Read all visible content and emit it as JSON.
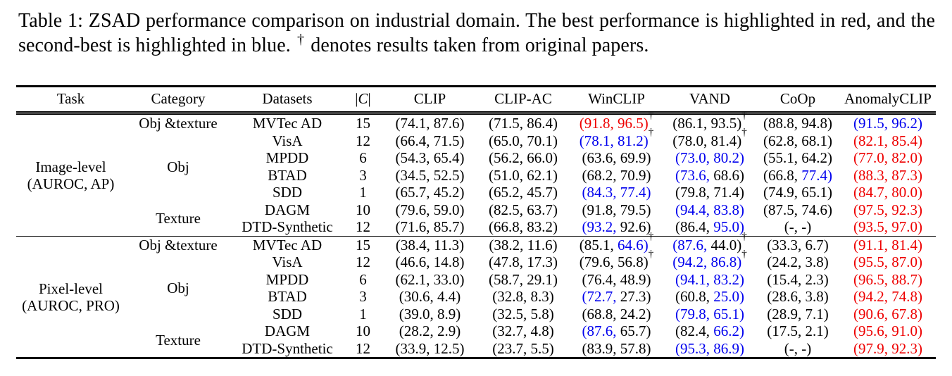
{
  "colors": {
    "best": "#EE0000",
    "second": "#0000EE",
    "text": "#000000"
  },
  "caption": {
    "part1": "Table 1: ZSAD performance comparison on industrial domain. The best performance is highlighted in red, and the second-best is highlighted in blue.",
    "dagger": "†",
    "part2": "denotes results taken from original papers."
  },
  "table": {
    "columns": [
      "Task",
      "Category",
      "Datasets",
      "|C|",
      "CLIP",
      "CLIP-AC",
      "WinCLIP",
      "VAND",
      "CoOp",
      "AnomalyCLIP"
    ],
    "sections": [
      {
        "task": [
          "Image-level",
          "(AUROC, AP)"
        ],
        "groups": [
          {
            "category": "Obj &texture",
            "rows": [
              {
                "dataset": "MVTec AD",
                "count": "15",
                "cells": [
                  [
                    "74.1",
                    "k",
                    "87.6",
                    "k",
                    0
                  ],
                  [
                    "71.5",
                    "k",
                    "86.4",
                    "k",
                    0
                  ],
                  [
                    "91.8",
                    "r",
                    "96.5",
                    "r",
                    1
                  ],
                  [
                    "86.1",
                    "k",
                    "93.5",
                    "k",
                    1
                  ],
                  [
                    "88.8",
                    "k",
                    "94.8",
                    "k",
                    0
                  ],
                  [
                    "91.5",
                    "b",
                    "96.2",
                    "b",
                    0
                  ]
                ]
              }
            ]
          },
          {
            "category": "Obj",
            "rows": [
              {
                "dataset": "VisA",
                "count": "12",
                "cells": [
                  [
                    "66.4",
                    "k",
                    "71.5",
                    "k",
                    0
                  ],
                  [
                    "65.0",
                    "k",
                    "70.1",
                    "k",
                    0
                  ],
                  [
                    "78.1",
                    "b",
                    "81.2",
                    "b",
                    1
                  ],
                  [
                    "78.0",
                    "k",
                    "81.4",
                    "k",
                    1
                  ],
                  [
                    "62.8",
                    "k",
                    "68.1",
                    "k",
                    0
                  ],
                  [
                    "82.1",
                    "r",
                    "85.4",
                    "r",
                    0
                  ]
                ]
              },
              {
                "dataset": "MPDD",
                "count": "6",
                "cells": [
                  [
                    "54.3",
                    "k",
                    "65.4",
                    "k",
                    0
                  ],
                  [
                    "56.2",
                    "k",
                    "66.0",
                    "k",
                    0
                  ],
                  [
                    "63.6",
                    "k",
                    "69.9",
                    "k",
                    0
                  ],
                  [
                    "73.0",
                    "b",
                    "80.2",
                    "b",
                    0
                  ],
                  [
                    "55.1",
                    "k",
                    "64.2",
                    "k",
                    0
                  ],
                  [
                    "77.0",
                    "r",
                    "82.0",
                    "r",
                    0
                  ]
                ]
              },
              {
                "dataset": "BTAD",
                "count": "3",
                "cells": [
                  [
                    "34.5",
                    "k",
                    "52.5",
                    "k",
                    0
                  ],
                  [
                    "51.0",
                    "k",
                    "62.1",
                    "k",
                    0
                  ],
                  [
                    "68.2",
                    "k",
                    "70.9",
                    "k",
                    0
                  ],
                  [
                    "73.6",
                    "b",
                    "68.6",
                    "k",
                    0
                  ],
                  [
                    "66.8",
                    "k",
                    "77.4",
                    "b",
                    0
                  ],
                  [
                    "88.3",
                    "r",
                    "87.3",
                    "r",
                    0
                  ]
                ]
              },
              {
                "dataset": "SDD",
                "count": "1",
                "cells": [
                  [
                    "65.7",
                    "k",
                    "45.2",
                    "k",
                    0
                  ],
                  [
                    "65.2",
                    "k",
                    "45.7",
                    "k",
                    0
                  ],
                  [
                    "84.3",
                    "b",
                    "77.4",
                    "b",
                    0
                  ],
                  [
                    "79.8",
                    "k",
                    "71.4",
                    "k",
                    0
                  ],
                  [
                    "74.9",
                    "k",
                    "65.1",
                    "k",
                    0
                  ],
                  [
                    "84.7",
                    "r",
                    "80.0",
                    "r",
                    0
                  ]
                ]
              }
            ]
          },
          {
            "category": "Texture",
            "rows": [
              {
                "dataset": "DAGM",
                "count": "10",
                "cells": [
                  [
                    "79.6",
                    "k",
                    "59.0",
                    "k",
                    0
                  ],
                  [
                    "82.5",
                    "k",
                    "63.7",
                    "k",
                    0
                  ],
                  [
                    "91.8",
                    "k",
                    "79.5",
                    "k",
                    0
                  ],
                  [
                    "94.4",
                    "b",
                    "83.8",
                    "b",
                    0
                  ],
                  [
                    "87.5",
                    "k",
                    "74.6",
                    "k",
                    0
                  ],
                  [
                    "97.5",
                    "r",
                    "92.3",
                    "r",
                    0
                  ]
                ]
              },
              {
                "dataset": "DTD-Synthetic",
                "count": "12",
                "cells": [
                  [
                    "71.6",
                    "k",
                    "85.7",
                    "k",
                    0
                  ],
                  [
                    "66.8",
                    "k",
                    "83.2",
                    "k",
                    0
                  ],
                  [
                    "93.2",
                    "b",
                    "92.6",
                    "k",
                    0
                  ],
                  [
                    "86.4",
                    "k",
                    "95.0",
                    "b",
                    0
                  ],
                  [
                    "-",
                    "k",
                    "-",
                    "k",
                    0
                  ],
                  [
                    "93.5",
                    "r",
                    "97.0",
                    "r",
                    0
                  ]
                ]
              }
            ]
          }
        ]
      },
      {
        "task": [
          "Pixel-level",
          "(AUROC, PRO)"
        ],
        "groups": [
          {
            "category": "Obj &texture",
            "rows": [
              {
                "dataset": "MVTec AD",
                "count": "15",
                "cells": [
                  [
                    "38.4",
                    "k",
                    "11.3",
                    "k",
                    0
                  ],
                  [
                    "38.2",
                    "k",
                    "11.6",
                    "k",
                    0
                  ],
                  [
                    "85.1",
                    "k",
                    "64.6",
                    "b",
                    1
                  ],
                  [
                    "87.6",
                    "b",
                    "44.0",
                    "k",
                    1
                  ],
                  [
                    "33.3",
                    "k",
                    "6.7",
                    "k",
                    0
                  ],
                  [
                    "91.1",
                    "r",
                    "81.4",
                    "r",
                    0
                  ]
                ]
              }
            ]
          },
          {
            "category": "Obj",
            "rows": [
              {
                "dataset": "VisA",
                "count": "12",
                "cells": [
                  [
                    "46.6",
                    "k",
                    "14.8",
                    "k",
                    0
                  ],
                  [
                    "47.8",
                    "k",
                    "17.3",
                    "k",
                    0
                  ],
                  [
                    "79.6",
                    "k",
                    "56.8",
                    "k",
                    1
                  ],
                  [
                    "94.2",
                    "b",
                    "86.8",
                    "b",
                    1
                  ],
                  [
                    "24.2",
                    "k",
                    "3.8",
                    "k",
                    0
                  ],
                  [
                    "95.5",
                    "r",
                    "87.0",
                    "r",
                    0
                  ]
                ]
              },
              {
                "dataset": "MPDD",
                "count": "6",
                "cells": [
                  [
                    "62.1",
                    "k",
                    "33.0",
                    "k",
                    0
                  ],
                  [
                    "58.7",
                    "k",
                    "29.1",
                    "k",
                    0
                  ],
                  [
                    "76.4",
                    "k",
                    "48.9",
                    "k",
                    0
                  ],
                  [
                    "94.1",
                    "b",
                    "83.2",
                    "b",
                    0
                  ],
                  [
                    "15.4",
                    "k",
                    "2.3",
                    "k",
                    0
                  ],
                  [
                    "96.5",
                    "r",
                    "88.7",
                    "r",
                    0
                  ]
                ]
              },
              {
                "dataset": "BTAD",
                "count": "3",
                "cells": [
                  [
                    "30.6",
                    "k",
                    "4.4",
                    "k",
                    0
                  ],
                  [
                    "32.8",
                    "k",
                    "8.3",
                    "k",
                    0
                  ],
                  [
                    "72.7",
                    "b",
                    "27.3",
                    "k",
                    0
                  ],
                  [
                    "60.8",
                    "k",
                    "25.0",
                    "b",
                    0
                  ],
                  [
                    "28.6",
                    "k",
                    "3.8",
                    "k",
                    0
                  ],
                  [
                    "94.2",
                    "r",
                    "74.8",
                    "r",
                    0
                  ]
                ]
              },
              {
                "dataset": "SDD",
                "count": "1",
                "cells": [
                  [
                    "39.0",
                    "k",
                    "8.9",
                    "k",
                    0
                  ],
                  [
                    "32.5",
                    "k",
                    "5.8",
                    "k",
                    0
                  ],
                  [
                    "68.8",
                    "k",
                    "24.2",
                    "k",
                    0
                  ],
                  [
                    "79.8",
                    "b",
                    "65.1",
                    "b",
                    0
                  ],
                  [
                    "28.9",
                    "k",
                    "7.1",
                    "k",
                    0
                  ],
                  [
                    "90.6",
                    "r",
                    "67.8",
                    "r",
                    0
                  ]
                ]
              }
            ]
          },
          {
            "category": "Texture",
            "rows": [
              {
                "dataset": "DAGM",
                "count": "10",
                "cells": [
                  [
                    "28.2",
                    "k",
                    "2.9",
                    "k",
                    0
                  ],
                  [
                    "32.7",
                    "k",
                    "4.8",
                    "k",
                    0
                  ],
                  [
                    "87.6",
                    "b",
                    "65.7",
                    "k",
                    0
                  ],
                  [
                    "82.4",
                    "k",
                    "66.2",
                    "b",
                    0
                  ],
                  [
                    "17.5",
                    "k",
                    "2.1",
                    "k",
                    0
                  ],
                  [
                    "95.6",
                    "r",
                    "91.0",
                    "r",
                    0
                  ]
                ]
              },
              {
                "dataset": "DTD-Synthetic",
                "count": "12",
                "cells": [
                  [
                    "33.9",
                    "k",
                    "12.5",
                    "k",
                    0
                  ],
                  [
                    "23.7",
                    "k",
                    "5.5",
                    "k",
                    0
                  ],
                  [
                    "83.9",
                    "k",
                    "57.8",
                    "k",
                    0
                  ],
                  [
                    "95.3",
                    "b",
                    "86.9",
                    "b",
                    0
                  ],
                  [
                    "-",
                    "k",
                    "-",
                    "k",
                    0
                  ],
                  [
                    "97.9",
                    "r",
                    "92.3",
                    "r",
                    0
                  ]
                ]
              }
            ]
          }
        ]
      }
    ]
  }
}
